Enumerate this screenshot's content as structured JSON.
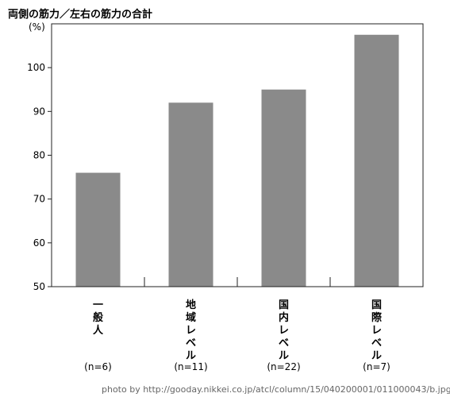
{
  "chart_data": {
    "type": "bar",
    "title": "両側の筋力／左右の筋力の合計",
    "ylabel": "(%)",
    "ylim": [
      50,
      110
    ],
    "yticks": [
      50,
      60,
      70,
      80,
      90,
      100
    ],
    "categories": [
      "一般人",
      "地域レベル",
      "国内レベル",
      "国際レベル"
    ],
    "sample_sizes": [
      "(n=6)",
      "(n=11)",
      "(n=22)",
      "(n=7)"
    ],
    "values": [
      76,
      92,
      95,
      107.5
    ],
    "bar_color": "#8a8a8a",
    "grid": false
  },
  "credit": "photo by http://gooday.nikkei.co.jp/atcl/column/15/040200001/011000043/b.jpg"
}
